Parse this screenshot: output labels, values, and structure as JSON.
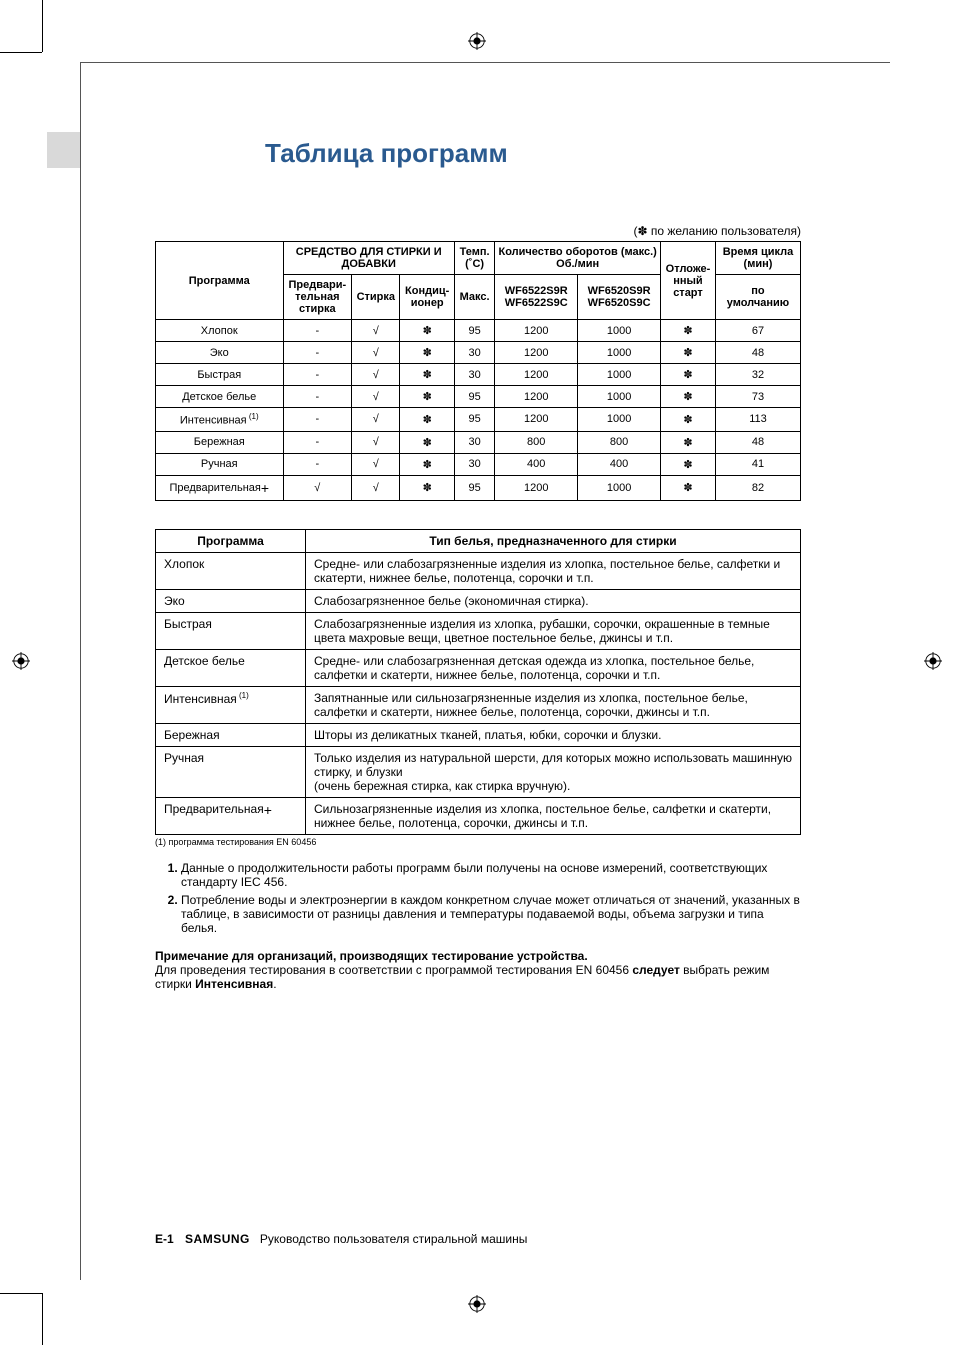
{
  "colors": {
    "title_color": "#2a5a8f",
    "tab_color": "#d9d9d9",
    "border_color": "#000000",
    "text_color": "#000000",
    "background": "#ffffff"
  },
  "page_title": "Таблица программ",
  "top_note": "(✽ по желанию пользователя)",
  "table1": {
    "headers": {
      "program": "Программа",
      "detergent_group": "СРЕДСТВО ДЛЯ СТИРКИ И ДОБАВКИ",
      "prewash": "Предвари­тельная стирка",
      "wash": "Стирка",
      "conditioner": "Кондиц­ионер",
      "temp": "Темп. (˚C)",
      "temp_sub": "Макс.",
      "rpm_group": "Количество оборотов (макс.) Об./мин",
      "model_a": "WF6522S9R WF6522S9C",
      "model_b": "WF6520S9R WF6520S9C",
      "delay": "Отложе­нный старт",
      "cycle_group": "Время цикла (мин)",
      "cycle_sub": "по умолчанию"
    },
    "check": "√",
    "star": "✽",
    "dash": "-",
    "rows": [
      {
        "name": "Хлопок",
        "prewash": "-",
        "wash": "√",
        "cond": "✽",
        "temp": "95",
        "rpm_a": "1200",
        "rpm_b": "1000",
        "delay": "✽",
        "cycle": "67"
      },
      {
        "name": "Эко",
        "prewash": "-",
        "wash": "√",
        "cond": "✽",
        "temp": "30",
        "rpm_a": "1200",
        "rpm_b": "1000",
        "delay": "✽",
        "cycle": "48"
      },
      {
        "name": "Быстрая",
        "prewash": "-",
        "wash": "√",
        "cond": "✽",
        "temp": "30",
        "rpm_a": "1200",
        "rpm_b": "1000",
        "delay": "✽",
        "cycle": "32"
      },
      {
        "name": "Детское белье",
        "prewash": "-",
        "wash": "√",
        "cond": "✽",
        "temp": "95",
        "rpm_a": "1200",
        "rpm_b": "1000",
        "delay": "✽",
        "cycle": "73"
      },
      {
        "name": "Интенсивная",
        "sup": "(1)",
        "prewash": "-",
        "wash": "√",
        "cond": "✽",
        "temp": "95",
        "rpm_a": "1200",
        "rpm_b": "1000",
        "delay": "✽",
        "cycle": "113"
      },
      {
        "name": "Бережная",
        "prewash": "-",
        "wash": "√",
        "cond": "✽",
        "temp": "30",
        "rpm_a": "800",
        "rpm_b": "800",
        "delay": "✽",
        "cycle": "48"
      },
      {
        "name": "Ручная",
        "prewash": "-",
        "wash": "√",
        "cond": "✽",
        "temp": "30",
        "rpm_a": "400",
        "rpm_b": "400",
        "delay": "✽",
        "cycle": "41"
      },
      {
        "name": "Предварительная",
        "plus": "+",
        "prewash": "√",
        "wash": "√",
        "cond": "✽",
        "temp": "95",
        "rpm_a": "1200",
        "rpm_b": "1000",
        "delay": "✽",
        "cycle": "82"
      }
    ]
  },
  "table2": {
    "headers": {
      "program": "Программа",
      "type": "Тип белья, предназначенного для стирки"
    },
    "rows": [
      {
        "name": "Хлопок",
        "desc": "Средне- или слабозагрязненные изделия из хлопка, постельное белье, салфетки и скатерти, нижнее белье, полотенца, сорочки и т.п."
      },
      {
        "name": "Эко",
        "desc": "Слабозагрязненное белье (экономичная стирка)."
      },
      {
        "name": "Быстрая",
        "desc": "Слабозагрязненные изделия из хлопка, рубашки, сорочки, окрашенные в темные цвета махровые вещи, цветное постельное белье, джинсы и т.п."
      },
      {
        "name": "Детское белье",
        "desc": "Средне- или слабозагрязненная детская одежда из хлопка, постельное белье, салфетки и скатерти, нижнее белье, полотенца, сорочки и т.п."
      },
      {
        "name": "Интенсивная",
        "sup": "(1)",
        "desc": "Запятнанные или сильнозагрязненные изделия из хлопка, постельное белье, салфетки и скатерти, нижнее белье, полотенца, сорочки, джинсы и т.п."
      },
      {
        "name": "Бережная",
        "desc": "Шторы из деликатных тканей, платья, юбки, сорочки и блузки."
      },
      {
        "name": "Ручная",
        "desc": "Только изделия из натуральной шерсти, для которых можно использовать машинную стирку, и блузки\n(очень бережная стирка, как стирка вручную)."
      },
      {
        "name": "Предварительная",
        "plus": "+",
        "desc": "Сильнозагрязненные изделия из хлопка, постельное белье, салфетки и скатерти, нижнее белье, полотенца, сорочки, джинсы и т.п."
      }
    ]
  },
  "footnote_en": "(1) программа тестирования EN 60456",
  "numbered_notes": [
    "Данные о продолжительности работы программ были получены на основе измерений, соответствующих стандарту IEC 456.",
    "Потребление воды и электроэнергии в каждом конкретном случае может отличаться от значений, указанных в таблице, в зависимости от разницы давления и температуры подаваемой воды, объема загрузки и типа белья."
  ],
  "tester_note": {
    "heading": "Примечание для организаций, производящих тестирование устройства.",
    "body_pre": "Для проведения тестирования в соответствии с программой тестирования EN 60456 ",
    "bold1": "следует",
    "body_mid": " выбрать режим стирки ",
    "bold2": "Интенсивная",
    "body_post": "."
  },
  "footer": {
    "page": "E-1",
    "brand": "SAMSUNG",
    "doc": "Руководство пользователя стиральной машины"
  }
}
